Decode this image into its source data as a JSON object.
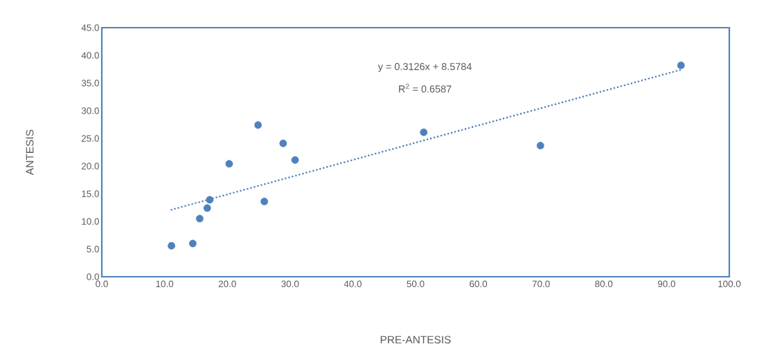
{
  "chart_data": {
    "type": "scatter",
    "xlabel": "PRE-ANTESIS",
    "ylabel": "ANTESIS",
    "annotations": [
      "y = 0.3126x + 8.5784",
      "R$^{2}$ = 0.6587"
    ],
    "series": [
      {
        "color": "#4f81bd",
        "marker": "circle",
        "x": [
          11.1,
          14.5,
          15.6,
          16.8,
          17.2,
          20.3,
          24.9,
          25.9,
          28.9,
          30.8,
          51.3,
          69.9,
          92.3
        ],
        "values": [
          5.6,
          6.0,
          10.5,
          12.4,
          13.9,
          20.4,
          27.4,
          13.6,
          24.1,
          21.1,
          26.1,
          23.7,
          38.2
        ]
      },
      {
        "type": "line",
        "color": "#4f81bd",
        "line_style": "dotted",
        "marker": "none",
        "x": [
          11.1,
          92.3
        ],
        "values": [
          12.1,
          37.4
        ]
      }
    ],
    "xlim": [
      0,
      100
    ],
    "ylim": [
      0,
      45
    ],
    "xticks": [
      {
        "value": 0,
        "label": "0.0"
      },
      {
        "value": 10,
        "label": "10.0"
      },
      {
        "value": 20,
        "label": "20.0"
      },
      {
        "value": 30,
        "label": "30.0"
      },
      {
        "value": 40,
        "label": "40.0"
      },
      {
        "value": 50,
        "label": "50.0"
      },
      {
        "value": 60,
        "label": "60.0"
      },
      {
        "value": 70,
        "label": "70.0"
      },
      {
        "value": 80,
        "label": "80.0"
      },
      {
        "value": 90,
        "label": "90.0"
      },
      {
        "value": 100,
        "label": "100.0"
      }
    ],
    "yticks": [
      {
        "value": 0,
        "label": "0.0"
      },
      {
        "value": 5,
        "label": "5.0"
      },
      {
        "value": 10,
        "label": "10.0"
      },
      {
        "value": 15,
        "label": "15.0"
      },
      {
        "value": 20,
        "label": "20.0"
      },
      {
        "value": 25,
        "label": "25.0"
      },
      {
        "value": 30,
        "label": "30.0"
      },
      {
        "value": 35,
        "label": "35.0"
      },
      {
        "value": 40,
        "label": "40.0"
      },
      {
        "value": 45,
        "label": "45.0"
      }
    ]
  }
}
